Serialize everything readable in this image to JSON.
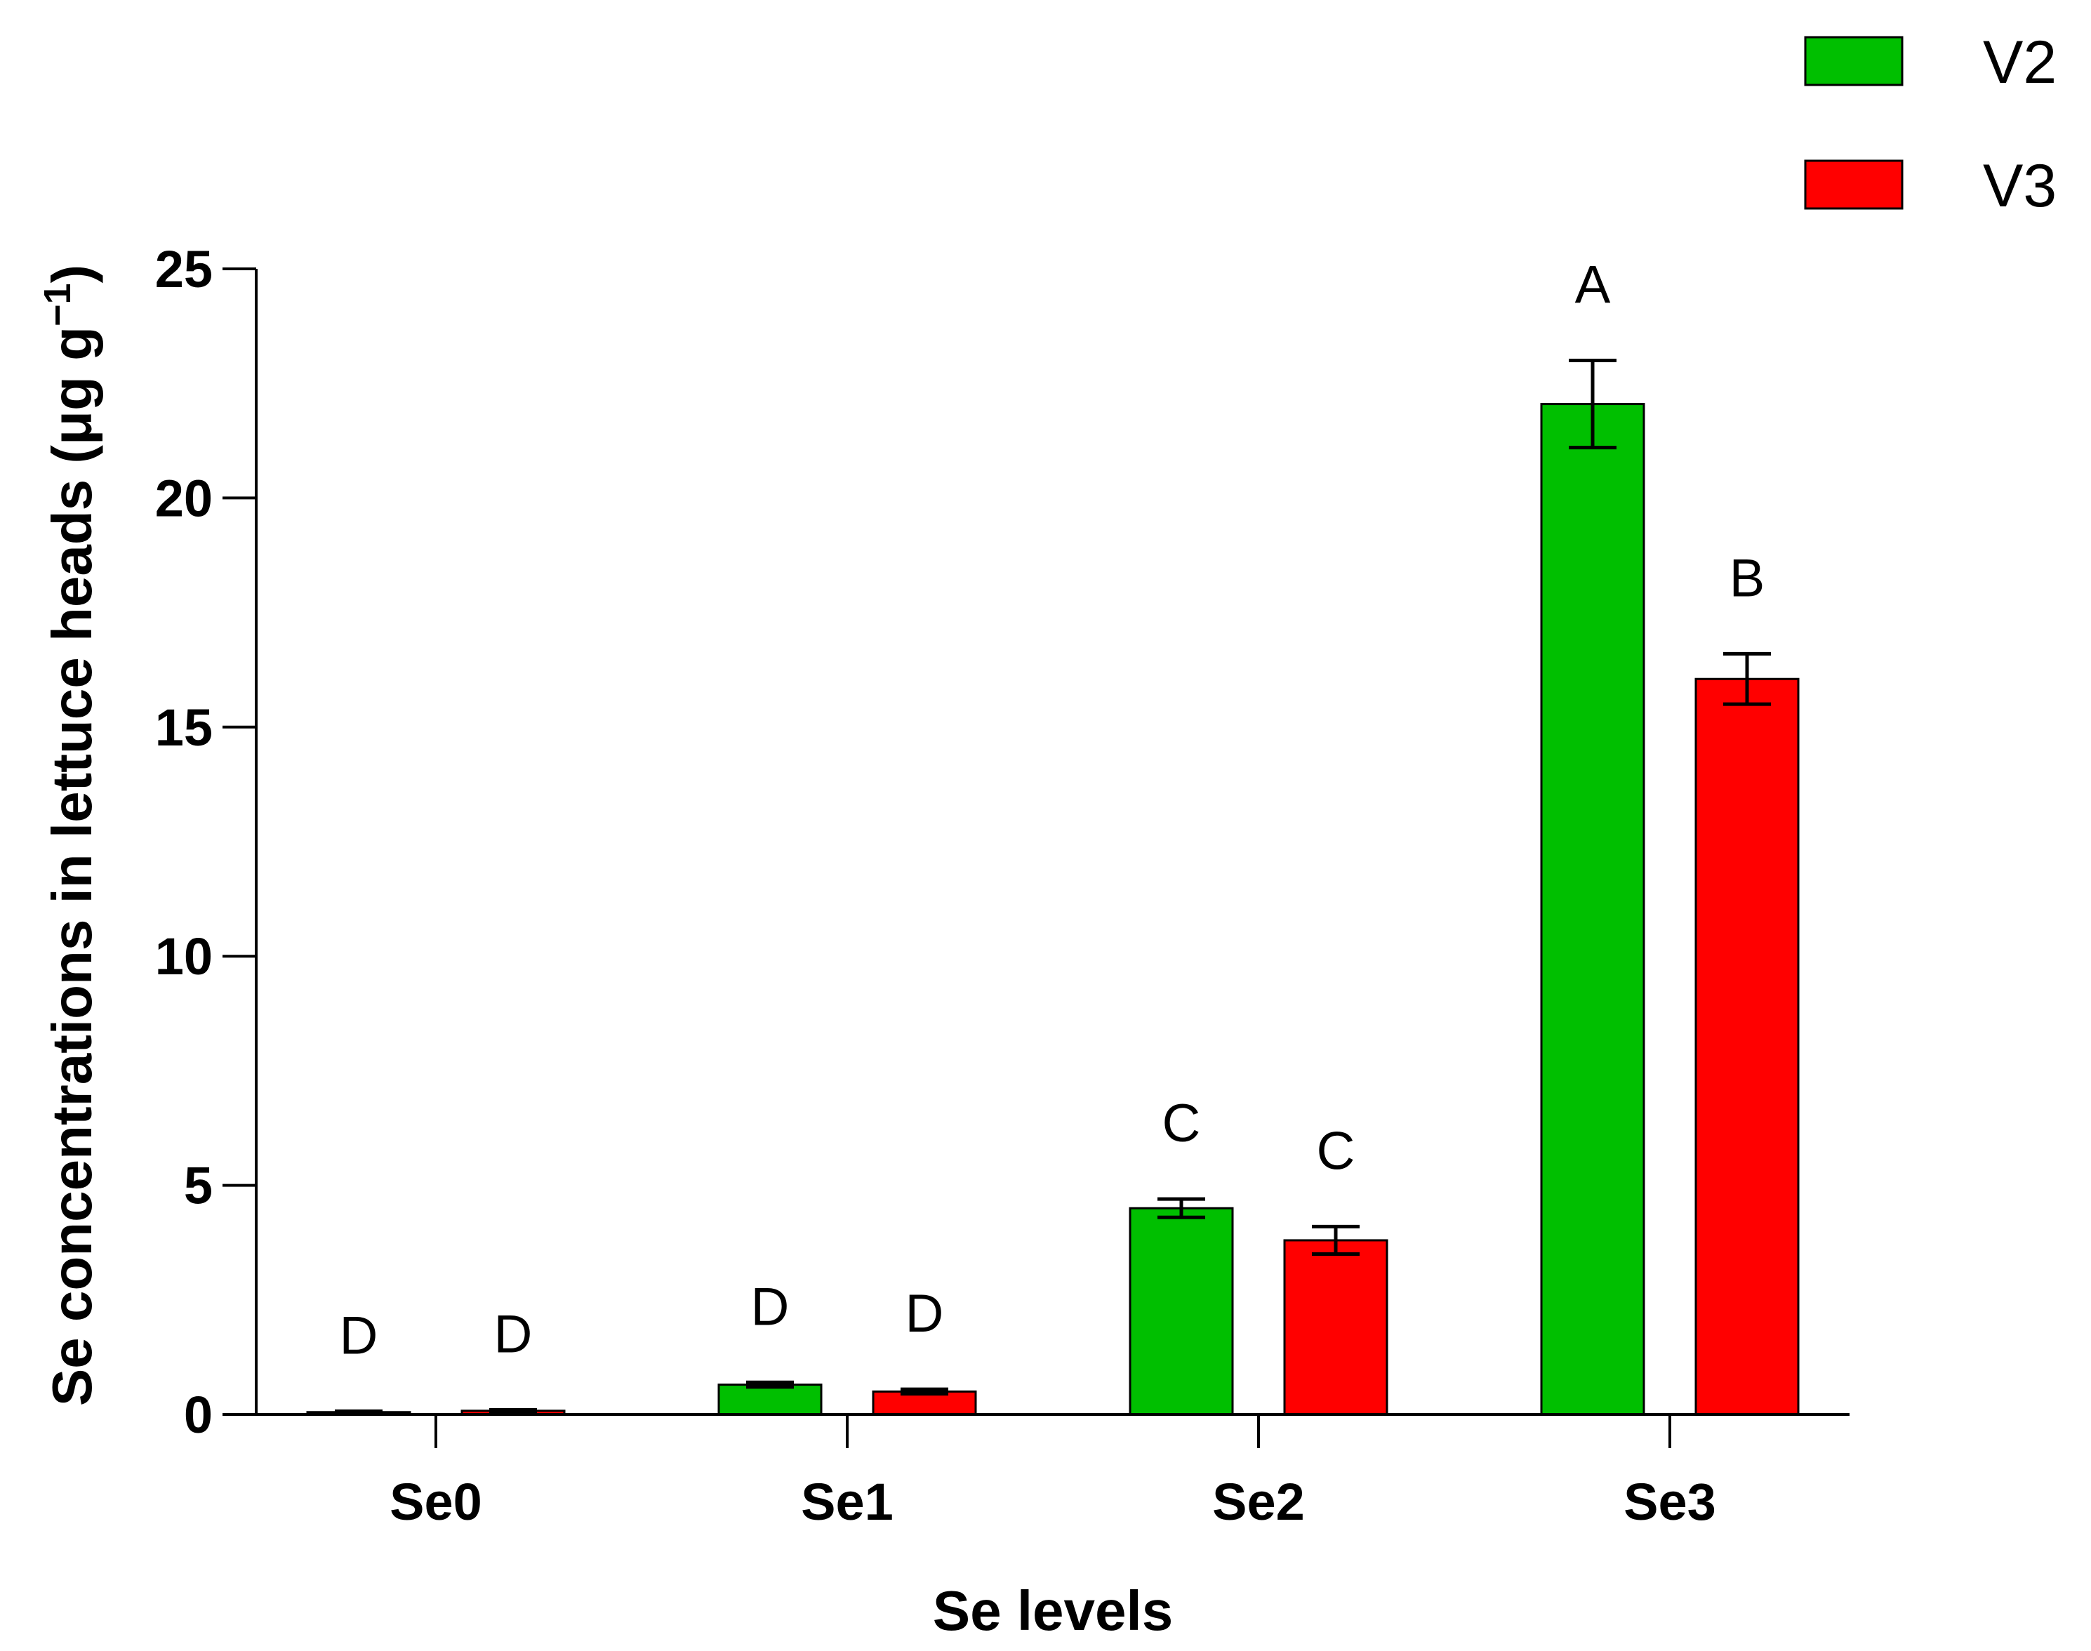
{
  "chart_data": {
    "type": "bar",
    "title": "",
    "xlabel": "Se levels",
    "ylabel": "Se  concentrations in lettuce heads (μg g",
    "ylabel_superscript": "−1",
    "ylabel_close": ")",
    "categories": [
      "Se0",
      "Se1",
      "Se2",
      "Se3"
    ],
    "ylim": [
      0,
      25
    ],
    "yticks": [
      0,
      5,
      10,
      15,
      20,
      25
    ],
    "legend_position": "top-right",
    "series": [
      {
        "name": "V2",
        "color": "#00bf00",
        "values": [
          0.05,
          0.65,
          4.5,
          22.05
        ],
        "errors": [
          0.02,
          0.05,
          0.2,
          0.95
        ],
        "letters": [
          "D",
          "D",
          "C",
          "A"
        ]
      },
      {
        "name": "V3",
        "color": "#ff0000",
        "values": [
          0.08,
          0.5,
          3.8,
          16.05
        ],
        "errors": [
          0.02,
          0.05,
          0.3,
          0.55
        ],
        "letters": [
          "D",
          "D",
          "C",
          "B"
        ]
      }
    ]
  }
}
